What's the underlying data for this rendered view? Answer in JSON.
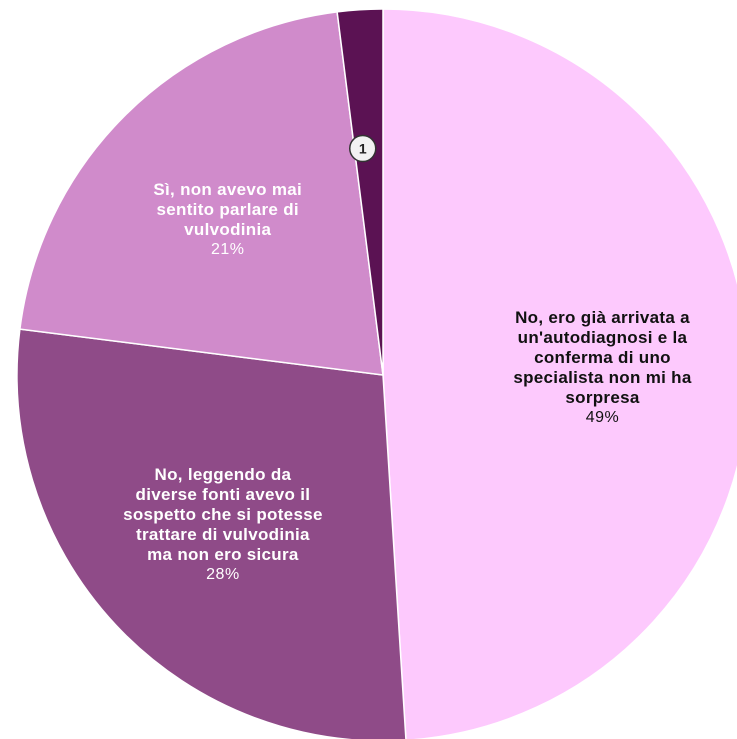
{
  "chart_data": {
    "type": "pie",
    "categories": [
      "No, ero già arrivata a un'autodiagnosi e la conferma di uno specialista non mi ha sorpresa",
      "No, leggendo da diverse fonti avevo il sospetto che si potesse trattare di vulvodinia ma non ero sicura",
      "Sì, non avevo mai sentito parlare di vulvodinia",
      null
    ],
    "values": [
      49,
      28,
      21,
      2
    ],
    "value_labels": [
      "49%",
      "28%",
      "21%",
      null
    ],
    "colors": [
      "#fdc9fd",
      "#8f4b88",
      "#d08bcb",
      "#5b1253"
    ],
    "label_colors": [
      "#111111",
      "#ffffff",
      "#ffffff",
      null
    ],
    "annotation": "1"
  }
}
